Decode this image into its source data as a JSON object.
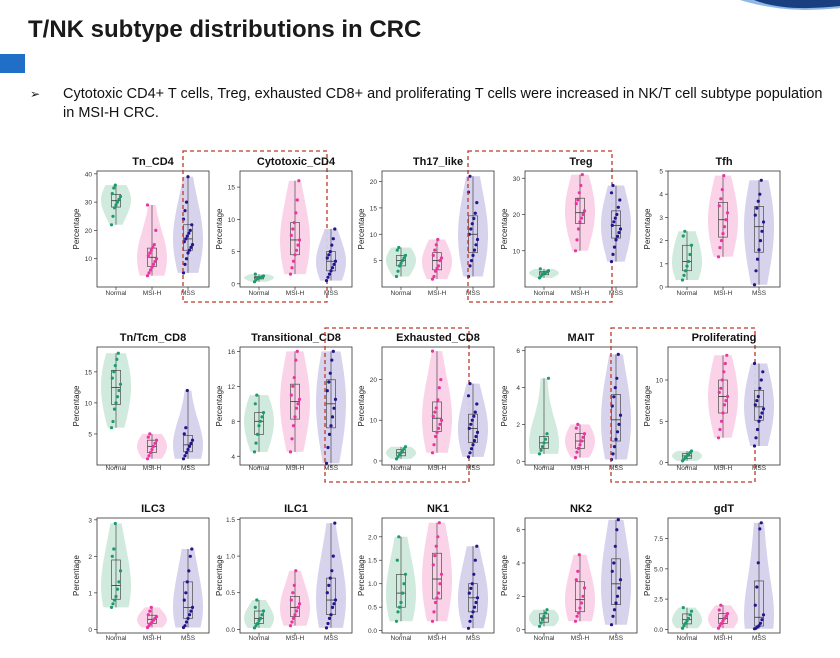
{
  "slide": {
    "title": "T/NK subtype distributions in CRC",
    "bullet_marker": "➢",
    "bullet": "Cytotoxic CD4+ T cells, Treg, exhausted CD8+ and proliferating T cells were increased in NK/T cell subtype population in MSI-H CRC."
  },
  "colors": {
    "accent": "#1f6fc6",
    "Normal": "#1e9a6e",
    "MSI-H": "#e8369e",
    "MSS": "#22168c",
    "highlight_border": "#c0392b"
  },
  "chart_data": [
    {
      "type": "violin",
      "title": "Tn_CD4",
      "ylabel": "Percentage",
      "categories": [
        "Normal",
        "MSI-H",
        "MSS"
      ],
      "ylim": [
        0,
        41
      ],
      "yticks": [
        10,
        20,
        30,
        40
      ],
      "highlighted": false,
      "series": [
        {
          "name": "Normal",
          "values": [
            22,
            25,
            28,
            30,
            31,
            33,
            35,
            36,
            32,
            29
          ]
        },
        {
          "name": "MSI-H",
          "values": [
            4,
            5,
            6,
            7,
            8,
            9,
            10,
            11,
            12,
            13,
            14,
            15,
            20,
            29
          ]
        },
        {
          "name": "MSS",
          "values": [
            5,
            8,
            10,
            12,
            13,
            14,
            15,
            16,
            17,
            18,
            19,
            20,
            22,
            24,
            27,
            30,
            39
          ]
        }
      ]
    },
    {
      "type": "violin",
      "title": "Cytotoxic_CD4",
      "ylabel": "Percentage",
      "categories": [
        "Normal",
        "MSI-H",
        "MSS"
      ],
      "ylim": [
        -0.5,
        17.5
      ],
      "yticks": [
        0,
        5,
        10,
        15
      ],
      "highlighted": true,
      "series": [
        {
          "name": "Normal",
          "values": [
            0.3,
            0.6,
            0.8,
            1.0,
            1.2,
            1.5,
            0.9,
            1.1
          ]
        },
        {
          "name": "MSI-H",
          "values": [
            1.5,
            2.5,
            3.5,
            4.5,
            5.2,
            6.0,
            6.8,
            7.5,
            8.5,
            9.5,
            11,
            13,
            16
          ]
        },
        {
          "name": "MSS",
          "values": [
            0.5,
            1.0,
            1.5,
            2.0,
            2.5,
            3.0,
            3.5,
            4.0,
            4.5,
            5.0,
            6.0,
            7.0,
            8.5
          ]
        }
      ]
    },
    {
      "type": "violin",
      "title": "Th17_like",
      "ylabel": "Percentage",
      "categories": [
        "Normal",
        "MSI-H",
        "MSS"
      ],
      "ylim": [
        0,
        22
      ],
      "yticks": [
        5,
        10,
        15,
        20
      ],
      "highlighted": false,
      "series": [
        {
          "name": "Normal",
          "values": [
            2,
            3,
            4,
            4.5,
            5,
            5.5,
            6,
            7,
            7.5
          ]
        },
        {
          "name": "MSI-H",
          "values": [
            1.5,
            2,
            3,
            3.5,
            4,
            5,
            5.5,
            6,
            7,
            8,
            9
          ]
        },
        {
          "name": "MSS",
          "values": [
            2,
            4,
            5,
            6,
            7,
            8,
            9,
            10,
            11,
            12,
            13,
            14,
            16,
            18,
            21
          ]
        }
      ]
    },
    {
      "type": "violin",
      "title": "Treg",
      "ylabel": "Percentage",
      "categories": [
        "Normal",
        "MSI-H",
        "MSS"
      ],
      "ylim": [
        0,
        32
      ],
      "yticks": [
        10,
        20,
        30
      ],
      "highlighted": true,
      "series": [
        {
          "name": "Normal",
          "values": [
            2.5,
            3,
            3.5,
            3.8,
            4,
            4.2,
            4.5,
            5
          ]
        },
        {
          "name": "MSI-H",
          "values": [
            10,
            13,
            16,
            18,
            19,
            20,
            21,
            23,
            24,
            26,
            28,
            31
          ]
        },
        {
          "name": "MSS",
          "values": [
            7,
            9,
            11,
            13,
            14,
            15,
            16,
            17,
            18,
            19,
            20,
            22,
            24,
            26,
            28
          ]
        }
      ]
    },
    {
      "type": "violin",
      "title": "Tfh",
      "ylabel": "Percentage",
      "categories": [
        "Normal",
        "MSI-H",
        "MSS"
      ],
      "ylim": [
        0,
        5
      ],
      "yticks": [
        0,
        1,
        2,
        3,
        4,
        5
      ],
      "highlighted": false,
      "series": [
        {
          "name": "Normal",
          "values": [
            0.3,
            0.5,
            0.7,
            0.9,
            1.1,
            1.4,
            1.8,
            2.2,
            2.4
          ]
        },
        {
          "name": "MSI-H",
          "values": [
            1.3,
            1.7,
            2.0,
            2.3,
            2.6,
            2.9,
            3.2,
            3.5,
            3.8,
            4.2,
            4.8
          ]
        },
        {
          "name": "MSS",
          "values": [
            0.1,
            0.7,
            1.2,
            1.6,
            2.0,
            2.4,
            2.8,
            3.1,
            3.4,
            3.7,
            4.0,
            4.6
          ]
        }
      ]
    },
    {
      "type": "violin",
      "title": "Tn/Tcm_CD8",
      "ylabel": "Percentage",
      "categories": [
        "Normal",
        "MSI-H",
        "MSS"
      ],
      "ylim": [
        0,
        19
      ],
      "yticks": [
        5,
        10,
        15
      ],
      "highlighted": false,
      "series": [
        {
          "name": "Normal",
          "values": [
            6,
            7,
            9,
            10,
            11,
            12,
            13,
            14,
            15,
            16,
            17,
            18
          ]
        },
        {
          "name": "MSI-H",
          "values": [
            1,
            1.5,
            2,
            2.5,
            3,
            3.5,
            4,
            4.5,
            5
          ]
        },
        {
          "name": "MSS",
          "values": [
            1,
            1.5,
            2,
            2.5,
            3,
            3.5,
            4,
            5,
            6,
            12
          ]
        }
      ]
    },
    {
      "type": "violin",
      "title": "Transitional_CD8",
      "ylabel": "Percentage",
      "categories": [
        "Normal",
        "MSI-H",
        "MSS"
      ],
      "ylim": [
        3,
        16.5
      ],
      "yticks": [
        4,
        8,
        12,
        16
      ],
      "highlighted": false,
      "series": [
        {
          "name": "Normal",
          "values": [
            4.5,
            5.5,
            6.5,
            7.5,
            8,
            8.5,
            9,
            10,
            11
          ]
        },
        {
          "name": "MSI-H",
          "values": [
            4.5,
            6,
            7.5,
            8.5,
            9.5,
            10,
            10.5,
            11,
            12,
            13,
            15,
            16
          ]
        },
        {
          "name": "MSS",
          "values": [
            3.2,
            5,
            6.5,
            7.5,
            8.5,
            9.5,
            10.5,
            11.5,
            12.5,
            13.5,
            15,
            16
          ]
        }
      ]
    },
    {
      "type": "violin",
      "title": "Exhausted_CD8",
      "ylabel": "Percentage",
      "categories": [
        "Normal",
        "MSI-H",
        "MSS"
      ],
      "ylim": [
        -1,
        28
      ],
      "yticks": [
        0,
        10,
        20
      ],
      "highlighted": true,
      "series": [
        {
          "name": "Normal",
          "values": [
            0.5,
            1,
            1.5,
            2,
            2.5,
            3,
            3.5
          ]
        },
        {
          "name": "MSI-H",
          "values": [
            2,
            4,
            6,
            7,
            8,
            9,
            10,
            11,
            12,
            13,
            15,
            18,
            20,
            27
          ]
        },
        {
          "name": "MSS",
          "values": [
            1,
            2,
            3,
            4,
            5,
            6,
            7,
            8,
            9,
            10,
            11,
            12,
            14,
            16,
            19
          ]
        }
      ]
    },
    {
      "type": "violin",
      "title": "MAIT",
      "ylabel": "Percentage",
      "categories": [
        "Normal",
        "MSI-H",
        "MSS"
      ],
      "ylim": [
        -0.2,
        6.2
      ],
      "yticks": [
        0,
        2,
        4,
        6
      ],
      "highlighted": false,
      "series": [
        {
          "name": "Normal",
          "values": [
            0.4,
            0.6,
            0.8,
            1.0,
            1.2,
            1.5,
            4.5
          ]
        },
        {
          "name": "MSI-H",
          "values": [
            0.2,
            0.5,
            0.7,
            0.9,
            1.1,
            1.3,
            1.5,
            1.8,
            2.0
          ]
        },
        {
          "name": "MSS",
          "values": [
            0.1,
            0.4,
            0.8,
            1.2,
            1.6,
            2.0,
            2.5,
            3.0,
            3.5,
            4.0,
            4.5,
            5.8
          ]
        }
      ]
    },
    {
      "type": "violin",
      "title": "Proliferating",
      "ylabel": "Percentage",
      "categories": [
        "Normal",
        "MSI-H",
        "MSS"
      ],
      "ylim": [
        -0.3,
        14
      ],
      "yticks": [
        0,
        5,
        10
      ],
      "highlighted": true,
      "series": [
        {
          "name": "Normal",
          "values": [
            0.2,
            0.4,
            0.6,
            0.8,
            1.0,
            1.2,
            1.4
          ]
        },
        {
          "name": "MSI-H",
          "values": [
            3,
            4,
            5,
            6,
            7,
            7.5,
            8,
            8.5,
            9,
            10,
            11,
            12,
            13
          ]
        },
        {
          "name": "MSS",
          "values": [
            2,
            3,
            4,
            5,
            5.5,
            6,
            6.5,
            7,
            7.5,
            8,
            9,
            10,
            11,
            12
          ]
        }
      ]
    },
    {
      "type": "violin",
      "title": "ILC3",
      "ylabel": "Percentage",
      "categories": [
        "Normal",
        "MSI-H",
        "MSS"
      ],
      "ylim": [
        -0.1,
        3.05
      ],
      "yticks": [
        0,
        1,
        2,
        3
      ],
      "highlighted": false,
      "series": [
        {
          "name": "Normal",
          "values": [
            0.6,
            0.7,
            0.8,
            0.9,
            1.1,
            1.3,
            1.6,
            2.0,
            2.2,
            2.9
          ]
        },
        {
          "name": "MSI-H",
          "values": [
            0.05,
            0.1,
            0.15,
            0.2,
            0.25,
            0.3,
            0.35,
            0.4,
            0.5,
            0.6
          ]
        },
        {
          "name": "MSS",
          "values": [
            0.05,
            0.1,
            0.2,
            0.3,
            0.4,
            0.5,
            0.6,
            0.8,
            1.0,
            1.3,
            1.6,
            2.0,
            2.2
          ]
        }
      ]
    },
    {
      "type": "violin",
      "title": "ILC1",
      "ylabel": "Percentage",
      "categories": [
        "Normal",
        "MSI-H",
        "MSS"
      ],
      "ylim": [
        -0.05,
        1.52
      ],
      "yticks": [
        0.0,
        0.5,
        1.0,
        1.5
      ],
      "highlighted": false,
      "series": [
        {
          "name": "Normal",
          "values": [
            0.02,
            0.05,
            0.08,
            0.12,
            0.15,
            0.2,
            0.25,
            0.3,
            0.4
          ]
        },
        {
          "name": "MSI-H",
          "values": [
            0.05,
            0.1,
            0.15,
            0.2,
            0.25,
            0.3,
            0.35,
            0.4,
            0.5,
            0.6,
            0.8
          ]
        },
        {
          "name": "MSS",
          "values": [
            0.02,
            0.08,
            0.15,
            0.2,
            0.3,
            0.35,
            0.4,
            0.5,
            0.6,
            0.7,
            0.8,
            1.0,
            1.45
          ]
        }
      ]
    },
    {
      "type": "violin",
      "title": "NK1",
      "ylabel": "Percentage",
      "categories": [
        "Normal",
        "MSI-H",
        "MSS"
      ],
      "ylim": [
        -0.05,
        2.4
      ],
      "yticks": [
        0.0,
        0.5,
        1.0,
        1.5,
        2.0
      ],
      "highlighted": false,
      "series": [
        {
          "name": "Normal",
          "values": [
            0.2,
            0.4,
            0.5,
            0.6,
            0.8,
            1.0,
            1.2,
            1.5,
            2.0
          ]
        },
        {
          "name": "MSI-H",
          "values": [
            0.2,
            0.4,
            0.6,
            0.7,
            0.8,
            1.0,
            1.2,
            1.4,
            1.6,
            1.8,
            2.0,
            2.3
          ]
        },
        {
          "name": "MSS",
          "values": [
            0.05,
            0.2,
            0.3,
            0.4,
            0.5,
            0.6,
            0.7,
            0.8,
            0.9,
            1.0,
            1.2,
            1.5,
            1.8
          ]
        }
      ]
    },
    {
      "type": "violin",
      "title": "NK2",
      "ylabel": "Percentage",
      "categories": [
        "Normal",
        "MSI-H",
        "MSS"
      ],
      "ylim": [
        -0.2,
        6.7
      ],
      "yticks": [
        0,
        2,
        4,
        6
      ],
      "highlighted": false,
      "series": [
        {
          "name": "Normal",
          "values": [
            0.2,
            0.4,
            0.6,
            0.8,
            1.0,
            1.2
          ]
        },
        {
          "name": "MSI-H",
          "values": [
            0.5,
            0.8,
            1.0,
            1.3,
            1.6,
            2.0,
            2.5,
            3.0,
            3.5,
            4.5
          ]
        },
        {
          "name": "MSS",
          "values": [
            0.3,
            0.8,
            1.2,
            1.6,
            2.0,
            2.5,
            3.0,
            3.5,
            4.0,
            5.0,
            6.0,
            6.6
          ]
        }
      ]
    },
    {
      "type": "violin",
      "title": "gdT",
      "ylabel": "Percentage",
      "categories": [
        "Normal",
        "MSI-H",
        "MSS"
      ],
      "ylim": [
        -0.3,
        9.2
      ],
      "yticks": [
        0.0,
        2.5,
        5.0,
        7.5
      ],
      "highlighted": false,
      "series": [
        {
          "name": "Normal",
          "values": [
            0.1,
            0.3,
            0.5,
            0.7,
            0.9,
            1.2,
            1.5,
            1.8
          ]
        },
        {
          "name": "MSI-H",
          "values": [
            0.1,
            0.3,
            0.5,
            0.7,
            0.9,
            1.1,
            1.3,
            1.6,
            2.0
          ]
        },
        {
          "name": "MSS",
          "values": [
            0.05,
            0.1,
            0.2,
            0.3,
            0.5,
            0.8,
            1.2,
            2.0,
            3.5,
            5.5,
            8.3,
            8.8
          ]
        }
      ]
    }
  ]
}
